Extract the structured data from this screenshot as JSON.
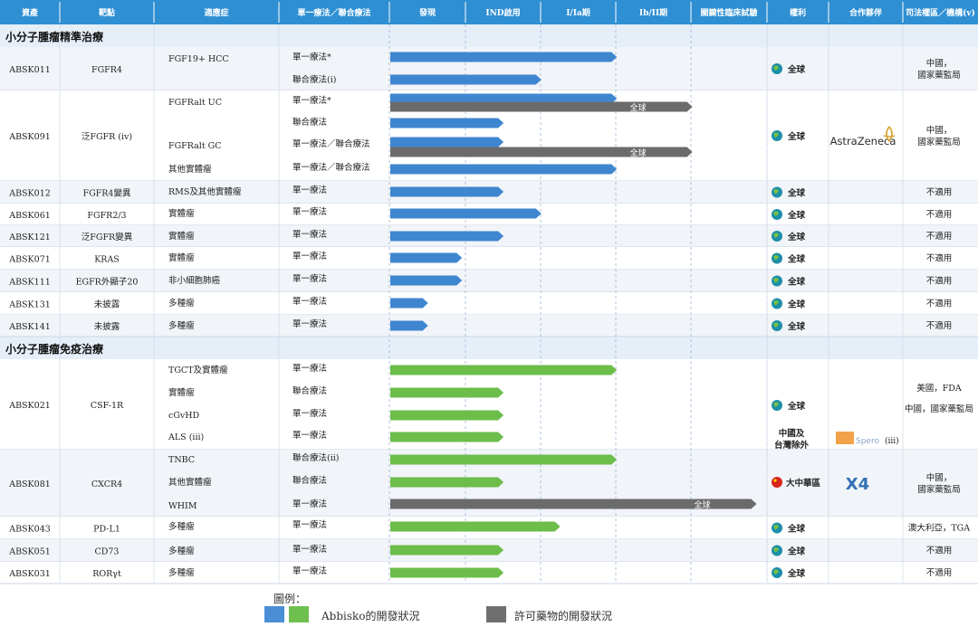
{
  "headers": [
    "資產",
    "靶點",
    "適應症",
    "單一療法／聯合療法",
    "發現",
    "IND啟用",
    "I/Ia期",
    "Ib/II期",
    "關鍵性臨床試驗",
    "權利",
    "合作夥伴",
    "司法權區／機構(v)"
  ],
  "sections": [
    {
      "title": "小分子腫瘤精準治療",
      "color": "blue"
    },
    {
      "title": "小分子腫瘤免疫治療",
      "color": "green"
    }
  ],
  "colors": {
    "header": "#2f8fd3",
    "blue": "#3f86d0",
    "green": "#6cbd4a",
    "gray": "#6b6b6b",
    "section_bg": "#e6eef8",
    "band": "#f1f4f8"
  },
  "icons": {
    "globe": "globe-icon",
    "china_flag": "china-flag-icon"
  },
  "partners": {
    "astrazeneca": "AstraZeneca",
    "spero": "Spero",
    "spero_note": "(iii)",
    "x4": "X4"
  },
  "stage_labels": {
    "global": "全球"
  },
  "rights_labels": {
    "global": "全球",
    "greater_china": "大中華區",
    "ex_china_1": "中國及",
    "ex_china_2": "台灣除外"
  },
  "chart_data": {
    "type": "gantt",
    "stage_scale": [
      "發現",
      "IND啟用",
      "I/Ia期",
      "Ib/II期",
      "關鍵性臨床試驗"
    ],
    "rows": [
      {
        "section": 0,
        "asset": "ABSK011",
        "target": "FGFR4",
        "indication": "FGF19+ HCC",
        "therapy": "單一療法*",
        "progress": 3.0,
        "color": "blue",
        "rights": "全球",
        "jurisdiction": "中國，國家藥監局"
      },
      {
        "section": 0,
        "asset": "ABSK011",
        "target": "FGFR4",
        "indication": "",
        "therapy": "聯合療法(i)",
        "progress": 2.0,
        "color": "blue"
      },
      {
        "section": 0,
        "asset": "ABSK091",
        "target": "泛FGFR (iv)",
        "indication": "FGFRalt UC",
        "therapy": "單一療法*",
        "progress": 3.0,
        "color": "blue",
        "rights": "全球",
        "partner": "AstraZeneca",
        "jurisdiction": "中國，國家藥監局"
      },
      {
        "section": 0,
        "asset": "ABSK091",
        "target": "",
        "indication": "",
        "therapy": "",
        "progress": 4.0,
        "color": "gray",
        "label": "全球"
      },
      {
        "section": 0,
        "asset": "ABSK091",
        "target": "",
        "indication": "",
        "therapy": "聯合療法",
        "progress": 1.5,
        "color": "blue"
      },
      {
        "section": 0,
        "asset": "ABSK091",
        "target": "",
        "indication": "FGFRalt GC",
        "therapy": "單一療法／聯合療法",
        "progress": 1.5,
        "color": "blue"
      },
      {
        "section": 0,
        "asset": "ABSK091",
        "target": "",
        "indication": "",
        "therapy": "",
        "progress": 4.0,
        "color": "gray",
        "label": "全球"
      },
      {
        "section": 0,
        "asset": "ABSK091",
        "target": "",
        "indication": "其他實體瘤",
        "therapy": "單一療法／聯合療法",
        "progress": 3.0,
        "color": "blue"
      },
      {
        "section": 0,
        "asset": "ABSK012",
        "target": "FGFR4變異",
        "indication": "RMS及其他實體瘤",
        "therapy": "單一療法",
        "progress": 1.5,
        "color": "blue",
        "rights": "全球",
        "jurisdiction": "不適用"
      },
      {
        "section": 0,
        "asset": "ABSK061",
        "target": "FGFR2/3",
        "indication": "實體瘤",
        "therapy": "單一療法",
        "progress": 2.0,
        "color": "blue",
        "rights": "全球",
        "jurisdiction": "不適用"
      },
      {
        "section": 0,
        "asset": "ABSK121",
        "target": "泛FGFR變異",
        "indication": "實體瘤",
        "therapy": "單一療法",
        "progress": 1.5,
        "color": "blue",
        "rights": "全球",
        "jurisdiction": "不適用"
      },
      {
        "section": 0,
        "asset": "ABSK071",
        "target": "KRAS",
        "indication": "實體瘤",
        "therapy": "單一療法",
        "progress": 0.95,
        "color": "blue",
        "rights": "全球",
        "jurisdiction": "不適用"
      },
      {
        "section": 0,
        "asset": "ABSK111",
        "target": "EGFR外顯子20",
        "indication": "非小細胞肺癌",
        "therapy": "單一療法",
        "progress": 0.95,
        "color": "blue",
        "rights": "全球",
        "jurisdiction": "不適用"
      },
      {
        "section": 0,
        "asset": "ABSK131",
        "target": "未披露",
        "indication": "多種瘤",
        "therapy": "單一療法",
        "progress": 0.5,
        "color": "blue",
        "rights": "全球",
        "jurisdiction": "不適用"
      },
      {
        "section": 0,
        "asset": "ABSK141",
        "target": "未披露",
        "indication": "多種瘤",
        "therapy": "單一療法",
        "progress": 0.5,
        "color": "blue",
        "rights": "全球",
        "jurisdiction": "不適用"
      },
      {
        "section": 1,
        "asset": "ABSK021",
        "target": "CSF-1R",
        "indication": "TGCT及實體瘤",
        "therapy": "單一療法",
        "progress": 3.0,
        "color": "green",
        "rights": "全球",
        "jurisdiction": "美國，FDA／中國，國家藥監局"
      },
      {
        "section": 1,
        "asset": "ABSK021",
        "target": "",
        "indication": "實體瘤",
        "therapy": "聯合療法",
        "progress": 1.5,
        "color": "green"
      },
      {
        "section": 1,
        "asset": "ABSK021",
        "target": "",
        "indication": "cGvHD",
        "therapy": "單一療法",
        "progress": 1.5,
        "color": "green"
      },
      {
        "section": 1,
        "asset": "ABSK021",
        "target": "",
        "indication": "ALS (iii)",
        "therapy": "單一療法",
        "progress": 1.5,
        "color": "green",
        "rights": "中國及台灣除外",
        "partner": "Spero (iii)"
      },
      {
        "section": 1,
        "asset": "ABSK081",
        "target": "CXCR4",
        "indication": "TNBC",
        "therapy": "聯合療法(ii)",
        "progress": 3.0,
        "color": "green",
        "rights": "大中華區",
        "partner": "X4",
        "jurisdiction": "中國，國家藥監局"
      },
      {
        "section": 1,
        "asset": "ABSK081",
        "target": "",
        "indication": "其他實體瘤",
        "therapy": "聯合療法",
        "progress": 1.5,
        "color": "green"
      },
      {
        "section": 1,
        "asset": "ABSK081",
        "target": "",
        "indication": "WHIM",
        "therapy": "單一療法",
        "progress": 4.85,
        "color": "gray",
        "label": "全球"
      },
      {
        "section": 1,
        "asset": "ABSK043",
        "target": "PD-L1",
        "indication": "多種瘤",
        "therapy": "單一療法",
        "progress": 2.25,
        "color": "green",
        "rights": "全球",
        "jurisdiction": "澳大利亞，TGA"
      },
      {
        "section": 1,
        "asset": "ABSK051",
        "target": "CD73",
        "indication": "多種瘤",
        "therapy": "單一療法",
        "progress": 1.5,
        "color": "green",
        "rights": "全球",
        "jurisdiction": "不適用"
      },
      {
        "section": 1,
        "asset": "ABSK031",
        "target": "RORγt",
        "indication": "多種瘤",
        "therapy": "單一療法",
        "progress": 1.5,
        "color": "green",
        "rights": "全球",
        "jurisdiction": "不適用"
      }
    ]
  },
  "legend": {
    "title": "圖例：",
    "abbisko": "Abbisko的開發狀況",
    "licensed": "許可藥物的開發狀況"
  }
}
